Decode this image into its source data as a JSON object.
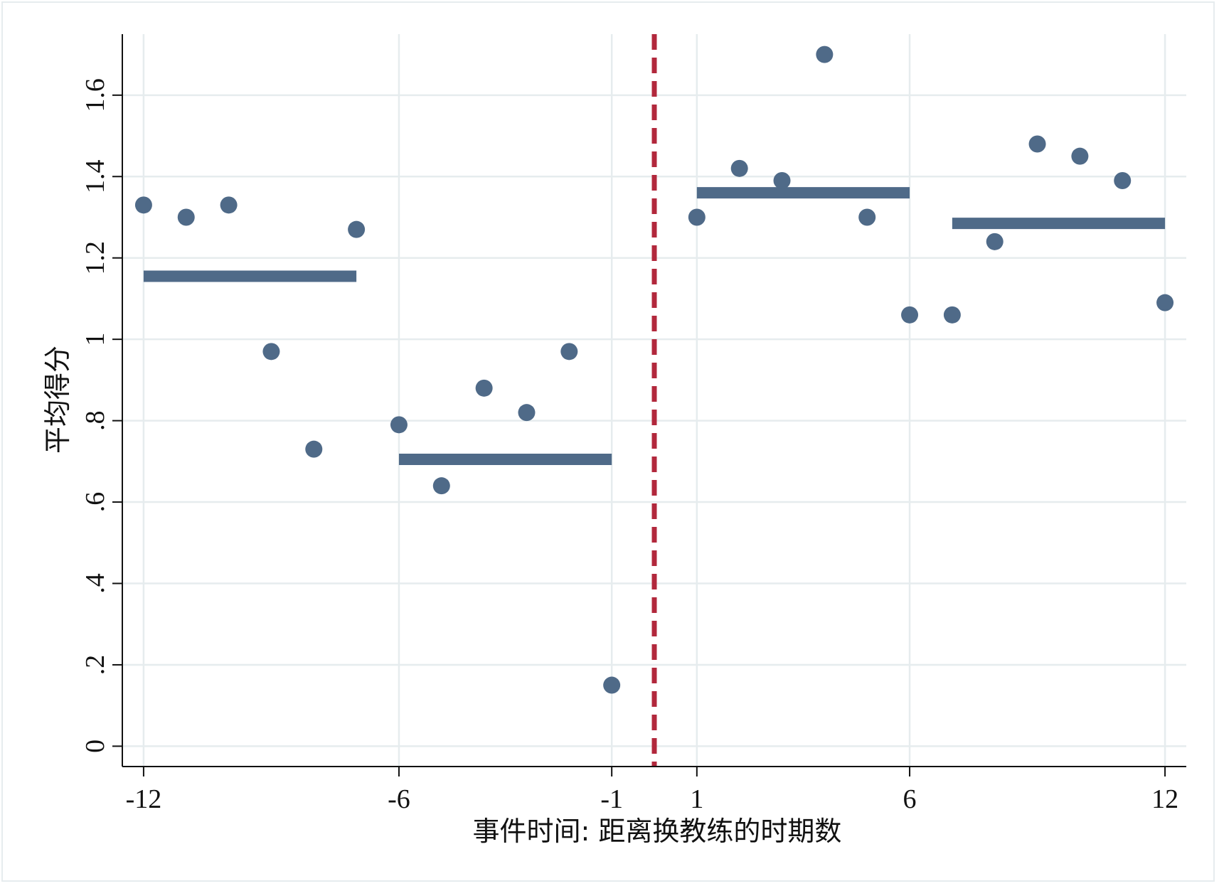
{
  "chart_data": {
    "type": "scatter",
    "xlabel": "事件时间: 距离换教练的时期数",
    "ylabel": "平均得分",
    "xlim": [
      -12.5,
      12.5
    ],
    "ylim": [
      -0.05,
      1.75
    ],
    "x_ticks": [
      -12,
      -6,
      -1,
      1,
      6,
      12
    ],
    "x_tick_labels": [
      "-12",
      "-6",
      "-1",
      "1",
      "6",
      "12"
    ],
    "y_ticks": [
      0,
      0.2,
      0.4,
      0.6,
      0.8,
      1,
      1.2,
      1.4,
      1.6
    ],
    "y_tick_labels": [
      "0",
      ".2",
      ".4",
      ".6",
      ".8",
      "1",
      "1.2",
      "1.4",
      "1.6"
    ],
    "grid": true,
    "colors": {
      "points": "#4f6a88",
      "segments": "#4f6a88",
      "event_line": "#b2283c",
      "grid": "#e6ecee"
    },
    "points": [
      {
        "x": -12,
        "y": 1.33
      },
      {
        "x": -11,
        "y": 1.3
      },
      {
        "x": -10,
        "y": 1.33
      },
      {
        "x": -9,
        "y": 0.97
      },
      {
        "x": -8,
        "y": 0.73
      },
      {
        "x": -7,
        "y": 1.27
      },
      {
        "x": -6,
        "y": 0.79
      },
      {
        "x": -5,
        "y": 0.64
      },
      {
        "x": -4,
        "y": 0.88
      },
      {
        "x": -3,
        "y": 0.82
      },
      {
        "x": -2,
        "y": 0.97
      },
      {
        "x": -1,
        "y": 0.15
      },
      {
        "x": 1,
        "y": 1.3
      },
      {
        "x": 2,
        "y": 1.42
      },
      {
        "x": 3,
        "y": 1.39
      },
      {
        "x": 4,
        "y": 1.7
      },
      {
        "x": 5,
        "y": 1.3
      },
      {
        "x": 6,
        "y": 1.06
      },
      {
        "x": 7,
        "y": 1.06
      },
      {
        "x": 8,
        "y": 1.24
      },
      {
        "x": 9,
        "y": 1.48
      },
      {
        "x": 10,
        "y": 1.45
      },
      {
        "x": 11,
        "y": 1.39
      },
      {
        "x": 12,
        "y": 1.09
      }
    ],
    "mean_segments": [
      {
        "x_start": -12,
        "x_end": -7,
        "y": 1.155
      },
      {
        "x_start": -6,
        "x_end": -1,
        "y": 0.705
      },
      {
        "x_start": 1,
        "x_end": 6,
        "y": 1.36
      },
      {
        "x_start": 7,
        "x_end": 12,
        "y": 1.285
      }
    ],
    "event_line_x": 0
  }
}
